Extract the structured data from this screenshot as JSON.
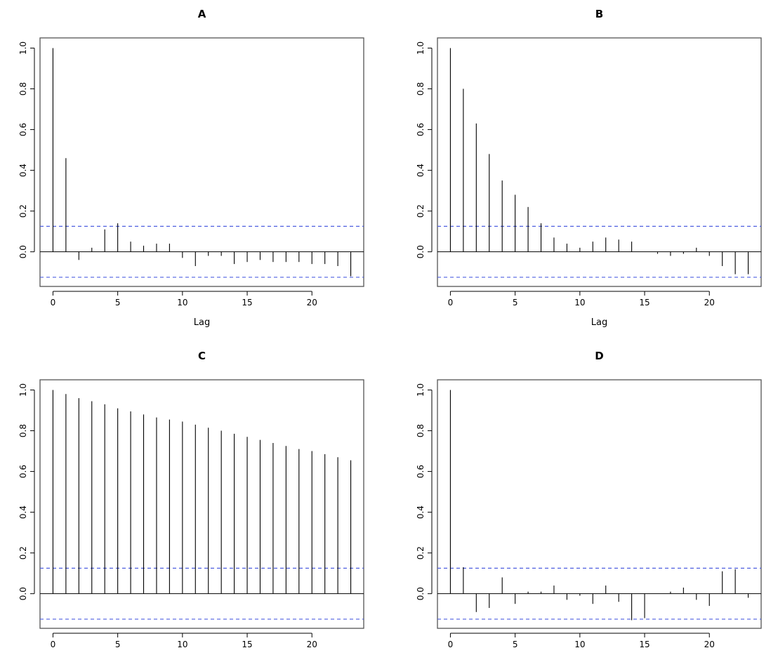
{
  "chart_data": [
    {
      "type": "bar",
      "title": "A",
      "xlabel": "Lag",
      "ylabel": "",
      "x": [
        0,
        1,
        2,
        3,
        4,
        5,
        6,
        7,
        8,
        9,
        10,
        11,
        12,
        13,
        14,
        15,
        16,
        17,
        18,
        19,
        20,
        21,
        22,
        23
      ],
      "values": [
        1.0,
        0.46,
        -0.04,
        0.02,
        0.11,
        0.14,
        0.05,
        0.03,
        0.04,
        0.04,
        -0.03,
        -0.07,
        -0.02,
        -0.02,
        -0.06,
        -0.05,
        -0.04,
        -0.05,
        -0.05,
        -0.05,
        -0.06,
        -0.06,
        -0.07,
        -0.12
      ],
      "confidence_band": [
        -0.125,
        0.125
      ],
      "xticks": [
        0,
        5,
        10,
        15,
        20
      ],
      "yticks": [
        "0.0",
        "0.2",
        "0.4",
        "0.6",
        "0.8",
        "1.0"
      ],
      "xlim": [
        -1,
        24
      ],
      "ylim": [
        -0.17,
        1.05
      ]
    },
    {
      "type": "bar",
      "title": "B",
      "xlabel": "Lag",
      "ylabel": "",
      "x": [
        0,
        1,
        2,
        3,
        4,
        5,
        6,
        7,
        8,
        9,
        10,
        11,
        12,
        13,
        14,
        15,
        16,
        17,
        18,
        19,
        20,
        21,
        22,
        23
      ],
      "values": [
        1.0,
        0.8,
        0.63,
        0.48,
        0.35,
        0.28,
        0.22,
        0.14,
        0.07,
        0.04,
        0.02,
        0.05,
        0.07,
        0.06,
        0.05,
        0.0,
        -0.01,
        -0.02,
        -0.01,
        0.02,
        -0.02,
        -0.07,
        -0.11,
        -0.11
      ],
      "confidence_band": [
        -0.125,
        0.125
      ],
      "xticks": [
        0,
        5,
        10,
        15,
        20
      ],
      "yticks": [
        "0.0",
        "0.2",
        "0.4",
        "0.6",
        "0.8",
        "1.0"
      ],
      "xlim": [
        -1,
        24
      ],
      "ylim": [
        -0.17,
        1.05
      ]
    },
    {
      "type": "bar",
      "title": "C",
      "xlabel": "",
      "ylabel": "",
      "x": [
        0,
        1,
        2,
        3,
        4,
        5,
        6,
        7,
        8,
        9,
        10,
        11,
        12,
        13,
        14,
        15,
        16,
        17,
        18,
        19,
        20,
        21,
        22,
        23
      ],
      "values": [
        1.0,
        0.98,
        0.96,
        0.945,
        0.93,
        0.91,
        0.895,
        0.88,
        0.865,
        0.855,
        0.845,
        0.83,
        0.815,
        0.8,
        0.785,
        0.77,
        0.755,
        0.74,
        0.725,
        0.71,
        0.7,
        0.685,
        0.67,
        0.655
      ],
      "confidence_band": [
        -0.125,
        0.125
      ],
      "xticks": [
        0,
        5,
        10,
        15,
        20
      ],
      "yticks": [
        "0.0",
        "0.2",
        "0.4",
        "0.6",
        "0.8",
        "1.0"
      ],
      "xlim": [
        -1,
        24
      ],
      "ylim": [
        -0.17,
        1.05
      ]
    },
    {
      "type": "bar",
      "title": "D",
      "xlabel": "",
      "ylabel": "",
      "x": [
        0,
        1,
        2,
        3,
        4,
        5,
        6,
        7,
        8,
        9,
        10,
        11,
        12,
        13,
        14,
        15,
        16,
        17,
        18,
        19,
        20,
        21,
        22,
        23
      ],
      "values": [
        1.0,
        0.13,
        -0.09,
        -0.07,
        0.08,
        -0.05,
        0.01,
        0.01,
        0.04,
        -0.03,
        -0.01,
        -0.05,
        0.04,
        -0.04,
        -0.13,
        -0.12,
        0.0,
        0.01,
        0.03,
        -0.03,
        -0.06,
        0.11,
        0.12,
        -0.02
      ],
      "confidence_band": [
        -0.125,
        0.125
      ],
      "xticks": [
        0,
        5,
        10,
        15,
        20
      ],
      "yticks": [
        "0.0",
        "0.2",
        "0.4",
        "0.6",
        "0.8",
        "1.0"
      ],
      "xlim": [
        -1,
        24
      ],
      "ylim": [
        -0.17,
        1.05
      ]
    }
  ],
  "style": {
    "bar_color": "#000000",
    "band_color": "#4f5fe0",
    "axis_color": "#000000"
  }
}
